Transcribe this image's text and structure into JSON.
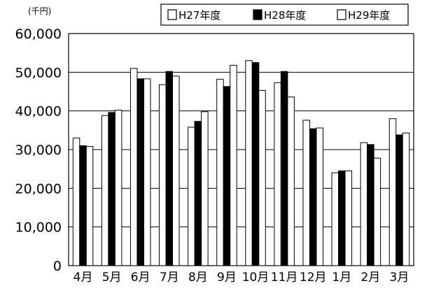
{
  "chart_data": {
    "type": "bar",
    "unit": "(千円)",
    "categories": [
      "4月",
      "5月",
      "6月",
      "7月",
      "8月",
      "9月",
      "10月",
      "11月",
      "12月",
      "1月",
      "2月",
      "3月"
    ],
    "series": [
      {
        "name": "H27年度",
        "color": "#ffffff",
        "values": [
          33000,
          38800,
          51000,
          46800,
          35800,
          48200,
          53000,
          47300,
          37600,
          24000,
          31800,
          38000
        ]
      },
      {
        "name": "H28年度",
        "color": "#000000",
        "values": [
          31000,
          39600,
          48300,
          50200,
          37300,
          46300,
          52500,
          50200,
          35400,
          24500,
          31300,
          33800
        ]
      },
      {
        "name": "H29年度",
        "color": "#ffffff",
        "values": [
          30800,
          40200,
          48300,
          49000,
          39800,
          51800,
          45300,
          43600,
          35600,
          24500,
          27800,
          34300
        ]
      }
    ],
    "yticks": [
      "0",
      "10,000",
      "20,000",
      "30,000",
      "40,000",
      "50,000",
      "60,000"
    ],
    "ylim": [
      0,
      60000
    ],
    "grid": true,
    "legend_position": "top-right"
  }
}
